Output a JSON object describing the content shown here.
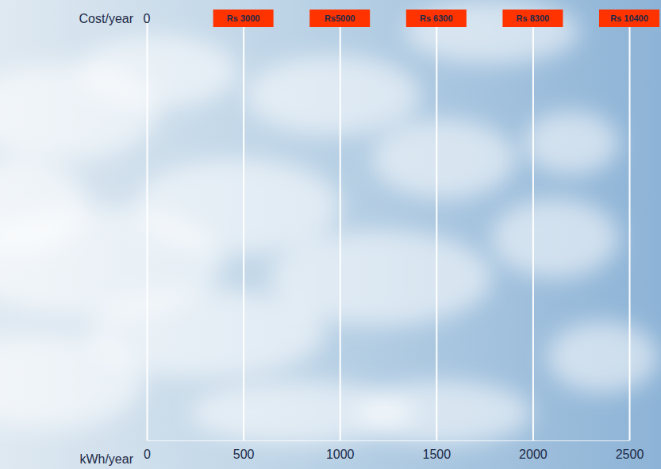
{
  "chart_data": {
    "type": "scale",
    "xlabel": "kWh/year",
    "ylabel": "Cost/year",
    "x": [
      0,
      500,
      1000,
      1500,
      2000,
      2500
    ],
    "values": [
      0,
      3000,
      5000,
      6300,
      8300,
      10400
    ],
    "value_labels": [
      "0",
      "Rs 3000",
      "Rs5000",
      "Rs 6300",
      "Rs 8300",
      "Rs 10400"
    ],
    "data_labels": true,
    "xlim": [
      0,
      2500
    ],
    "xticks": [
      0,
      500,
      1000,
      1500,
      2000,
      2500
    ],
    "grid": true,
    "color": "#ff3300"
  }
}
